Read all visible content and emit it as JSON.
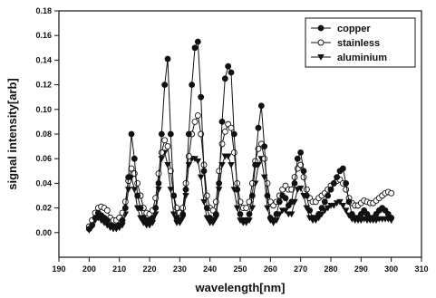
{
  "chart_data": {
    "type": "line",
    "xlabel": "wavelength[nm]",
    "ylabel": "signal intensity[arb]",
    "xlim": [
      190,
      310
    ],
    "ylim": [
      -0.02,
      0.18
    ],
    "xticks": [
      190,
      200,
      210,
      220,
      230,
      240,
      250,
      260,
      270,
      280,
      290,
      300,
      310
    ],
    "yticks": [
      "0.00",
      "0.02",
      "0.04",
      "0.06",
      "0.08",
      "0.10",
      "0.12",
      "0.14",
      "0.16",
      "0.18"
    ],
    "grid": false,
    "legend_position": "top-right",
    "series": [
      {
        "name": "copper",
        "marker": "filled-circle",
        "color": "#111111",
        "points": [
          [
            200,
            0.003
          ],
          [
            201,
            0.006
          ],
          [
            202,
            0.012
          ],
          [
            203,
            0.016
          ],
          [
            204,
            0.014
          ],
          [
            205,
            0.012
          ],
          [
            206,
            0.01
          ],
          [
            207,
            0.006
          ],
          [
            208,
            0.005
          ],
          [
            209,
            0.005
          ],
          [
            210,
            0.006
          ],
          [
            211,
            0.01
          ],
          [
            212,
            0.02
          ],
          [
            213,
            0.045
          ],
          [
            214,
            0.08
          ],
          [
            215,
            0.06
          ],
          [
            216,
            0.03
          ],
          [
            217,
            0.02
          ],
          [
            218,
            0.012
          ],
          [
            219,
            0.01
          ],
          [
            220,
            0.01
          ],
          [
            221,
            0.012
          ],
          [
            222,
            0.02
          ],
          [
            223,
            0.04
          ],
          [
            224,
            0.08
          ],
          [
            225,
            0.12
          ],
          [
            226,
            0.141
          ],
          [
            227,
            0.08
          ],
          [
            228,
            0.03
          ],
          [
            229,
            0.012
          ],
          [
            230,
            0.01
          ],
          [
            231,
            0.015
          ],
          [
            232,
            0.035
          ],
          [
            233,
            0.08
          ],
          [
            234,
            0.12
          ],
          [
            235,
            0.15
          ],
          [
            236,
            0.155
          ],
          [
            237,
            0.11
          ],
          [
            238,
            0.05
          ],
          [
            239,
            0.02
          ],
          [
            240,
            0.012
          ],
          [
            241,
            0.01
          ],
          [
            242,
            0.015
          ],
          [
            243,
            0.04
          ],
          [
            244,
            0.09
          ],
          [
            245,
            0.125
          ],
          [
            246,
            0.135
          ],
          [
            247,
            0.13
          ],
          [
            248,
            0.08
          ],
          [
            249,
            0.035
          ],
          [
            250,
            0.015
          ],
          [
            251,
            0.01
          ],
          [
            252,
            0.01
          ],
          [
            253,
            0.015
          ],
          [
            254,
            0.03
          ],
          [
            255,
            0.055
          ],
          [
            256,
            0.085
          ],
          [
            257,
            0.103
          ],
          [
            258,
            0.07
          ],
          [
            259,
            0.03
          ],
          [
            260,
            0.012
          ],
          [
            261,
            0.01
          ],
          [
            262,
            0.015
          ],
          [
            263,
            0.025
          ],
          [
            264,
            0.03
          ],
          [
            265,
            0.028
          ],
          [
            266,
            0.022
          ],
          [
            267,
            0.025
          ],
          [
            268,
            0.04
          ],
          [
            269,
            0.06
          ],
          [
            270,
            0.065
          ],
          [
            271,
            0.05
          ],
          [
            272,
            0.03
          ],
          [
            273,
            0.018
          ],
          [
            274,
            0.012
          ],
          [
            275,
            0.012
          ],
          [
            276,
            0.015
          ],
          [
            277,
            0.02
          ],
          [
            278,
            0.025
          ],
          [
            279,
            0.03
          ],
          [
            280,
            0.035
          ],
          [
            281,
            0.04
          ],
          [
            282,
            0.045
          ],
          [
            283,
            0.05
          ],
          [
            284,
            0.052
          ],
          [
            285,
            0.04
          ],
          [
            286,
            0.025
          ],
          [
            287,
            0.015
          ],
          [
            288,
            0.012
          ],
          [
            289,
            0.012
          ],
          [
            290,
            0.015
          ],
          [
            291,
            0.018
          ],
          [
            292,
            0.015
          ],
          [
            293,
            0.012
          ],
          [
            294,
            0.012
          ],
          [
            295,
            0.015
          ],
          [
            296,
            0.018
          ],
          [
            297,
            0.02
          ],
          [
            298,
            0.018
          ],
          [
            299,
            0.015
          ],
          [
            300,
            0.012
          ]
        ]
      },
      {
        "name": "stainless",
        "marker": "open-circle",
        "color": "#111111",
        "points": [
          [
            200,
            0.005
          ],
          [
            201,
            0.01
          ],
          [
            202,
            0.016
          ],
          [
            203,
            0.02
          ],
          [
            204,
            0.021
          ],
          [
            205,
            0.02
          ],
          [
            206,
            0.018
          ],
          [
            207,
            0.012
          ],
          [
            208,
            0.01
          ],
          [
            209,
            0.01
          ],
          [
            210,
            0.012
          ],
          [
            211,
            0.016
          ],
          [
            212,
            0.025
          ],
          [
            213,
            0.042
          ],
          [
            214,
            0.052
          ],
          [
            215,
            0.048
          ],
          [
            216,
            0.04
          ],
          [
            217,
            0.03
          ],
          [
            218,
            0.02
          ],
          [
            219,
            0.016
          ],
          [
            220,
            0.015
          ],
          [
            221,
            0.018
          ],
          [
            222,
            0.028
          ],
          [
            223,
            0.048
          ],
          [
            224,
            0.065
          ],
          [
            225,
            0.075
          ],
          [
            226,
            0.07
          ],
          [
            227,
            0.05
          ],
          [
            228,
            0.03
          ],
          [
            229,
            0.02
          ],
          [
            230,
            0.016
          ],
          [
            231,
            0.02
          ],
          [
            232,
            0.04
          ],
          [
            233,
            0.062
          ],
          [
            234,
            0.08
          ],
          [
            235,
            0.09
          ],
          [
            236,
            0.095
          ],
          [
            237,
            0.08
          ],
          [
            238,
            0.055
          ],
          [
            239,
            0.03
          ],
          [
            240,
            0.02
          ],
          [
            241,
            0.018
          ],
          [
            242,
            0.025
          ],
          [
            243,
            0.05
          ],
          [
            244,
            0.072
          ],
          [
            245,
            0.082
          ],
          [
            246,
            0.088
          ],
          [
            247,
            0.085
          ],
          [
            248,
            0.065
          ],
          [
            249,
            0.04
          ],
          [
            250,
            0.025
          ],
          [
            251,
            0.02
          ],
          [
            252,
            0.02
          ],
          [
            253,
            0.025
          ],
          [
            254,
            0.04
          ],
          [
            255,
            0.058
          ],
          [
            256,
            0.068
          ],
          [
            257,
            0.072
          ],
          [
            258,
            0.06
          ],
          [
            259,
            0.04
          ],
          [
            260,
            0.025
          ],
          [
            261,
            0.022
          ],
          [
            262,
            0.025
          ],
          [
            263,
            0.03
          ],
          [
            264,
            0.035
          ],
          [
            265,
            0.038
          ],
          [
            266,
            0.035
          ],
          [
            267,
            0.035
          ],
          [
            268,
            0.045
          ],
          [
            269,
            0.052
          ],
          [
            270,
            0.055
          ],
          [
            271,
            0.045
          ],
          [
            272,
            0.035
          ],
          [
            273,
            0.028
          ],
          [
            274,
            0.025
          ],
          [
            275,
            0.025
          ],
          [
            276,
            0.028
          ],
          [
            277,
            0.03
          ],
          [
            278,
            0.032
          ],
          [
            279,
            0.035
          ],
          [
            280,
            0.038
          ],
          [
            281,
            0.04
          ],
          [
            282,
            0.042
          ],
          [
            283,
            0.043
          ],
          [
            284,
            0.04
          ],
          [
            285,
            0.035
          ],
          [
            286,
            0.028
          ],
          [
            287,
            0.024
          ],
          [
            288,
            0.022
          ],
          [
            289,
            0.022
          ],
          [
            290,
            0.024
          ],
          [
            291,
            0.026
          ],
          [
            292,
            0.025
          ],
          [
            293,
            0.024
          ],
          [
            294,
            0.024
          ],
          [
            295,
            0.026
          ],
          [
            296,
            0.028
          ],
          [
            297,
            0.03
          ],
          [
            298,
            0.032
          ],
          [
            299,
            0.033
          ],
          [
            300,
            0.032
          ]
        ]
      },
      {
        "name": "aluminium",
        "marker": "filled-triangle-down",
        "color": "#111111",
        "points": [
          [
            200,
            0.002
          ],
          [
            201,
            0.005
          ],
          [
            202,
            0.01
          ],
          [
            203,
            0.012
          ],
          [
            204,
            0.01
          ],
          [
            205,
            0.008
          ],
          [
            206,
            0.006
          ],
          [
            207,
            0.004
          ],
          [
            208,
            0.003
          ],
          [
            209,
            0.003
          ],
          [
            210,
            0.004
          ],
          [
            211,
            0.006
          ],
          [
            212,
            0.015
          ],
          [
            213,
            0.035
          ],
          [
            214,
            0.045
          ],
          [
            215,
            0.035
          ],
          [
            216,
            0.02
          ],
          [
            217,
            0.012
          ],
          [
            218,
            0.008
          ],
          [
            219,
            0.006
          ],
          [
            220,
            0.006
          ],
          [
            221,
            0.008
          ],
          [
            222,
            0.015
          ],
          [
            223,
            0.035
          ],
          [
            224,
            0.06
          ],
          [
            225,
            0.065
          ],
          [
            226,
            0.055
          ],
          [
            227,
            0.035
          ],
          [
            228,
            0.015
          ],
          [
            229,
            0.008
          ],
          [
            230,
            0.008
          ],
          [
            231,
            0.012
          ],
          [
            232,
            0.03
          ],
          [
            233,
            0.055
          ],
          [
            234,
            0.06
          ],
          [
            235,
            0.06
          ],
          [
            236,
            0.058
          ],
          [
            237,
            0.045
          ],
          [
            238,
            0.025
          ],
          [
            239,
            0.012
          ],
          [
            240,
            0.008
          ],
          [
            241,
            0.008
          ],
          [
            242,
            0.012
          ],
          [
            243,
            0.035
          ],
          [
            244,
            0.055
          ],
          [
            245,
            0.062
          ],
          [
            246,
            0.062
          ],
          [
            247,
            0.055
          ],
          [
            248,
            0.035
          ],
          [
            249,
            0.02
          ],
          [
            250,
            0.01
          ],
          [
            251,
            0.008
          ],
          [
            252,
            0.008
          ],
          [
            253,
            0.01
          ],
          [
            254,
            0.02
          ],
          [
            255,
            0.04
          ],
          [
            256,
            0.055
          ],
          [
            257,
            0.06
          ],
          [
            258,
            0.045
          ],
          [
            259,
            0.02
          ],
          [
            260,
            0.01
          ],
          [
            261,
            0.008
          ],
          [
            262,
            0.01
          ],
          [
            263,
            0.015
          ],
          [
            264,
            0.018
          ],
          [
            265,
            0.018
          ],
          [
            266,
            0.015
          ],
          [
            267,
            0.015
          ],
          [
            268,
            0.025
          ],
          [
            269,
            0.035
          ],
          [
            270,
            0.036
          ],
          [
            271,
            0.03
          ],
          [
            272,
            0.02
          ],
          [
            273,
            0.012
          ],
          [
            274,
            0.01
          ],
          [
            275,
            0.01
          ],
          [
            276,
            0.012
          ],
          [
            277,
            0.015
          ],
          [
            278,
            0.018
          ],
          [
            279,
            0.02
          ],
          [
            280,
            0.022
          ],
          [
            281,
            0.022
          ],
          [
            282,
            0.024
          ],
          [
            283,
            0.025
          ],
          [
            284,
            0.022
          ],
          [
            285,
            0.018
          ],
          [
            286,
            0.014
          ],
          [
            287,
            0.011
          ],
          [
            288,
            0.01
          ],
          [
            289,
            0.01
          ],
          [
            290,
            0.01
          ],
          [
            291,
            0.011
          ],
          [
            292,
            0.01
          ],
          [
            293,
            0.01
          ],
          [
            294,
            0.01
          ],
          [
            295,
            0.01
          ],
          [
            296,
            0.011
          ],
          [
            297,
            0.011
          ],
          [
            298,
            0.011
          ],
          [
            299,
            0.011
          ],
          [
            300,
            0.01
          ]
        ]
      }
    ]
  }
}
